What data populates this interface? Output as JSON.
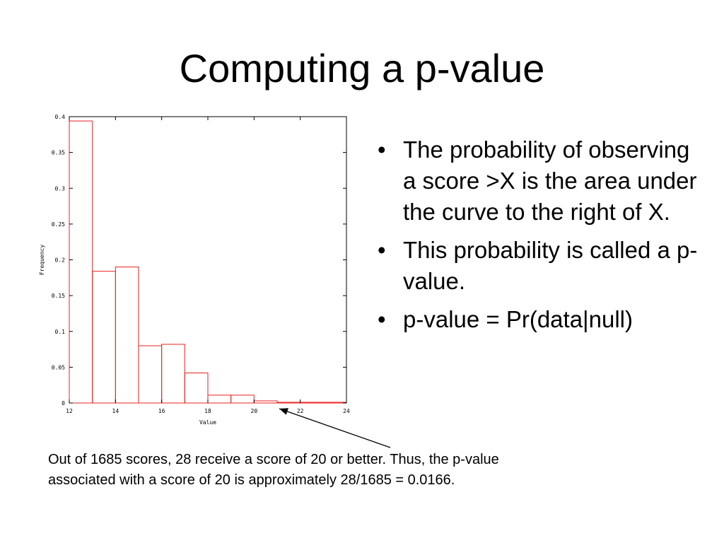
{
  "slide": {
    "title": "Computing a p-value",
    "bullets": [
      "The probability of observing a score >X is the area under the curve to the right of X.",
      "This probability is called a p-value.",
      "p-value = Pr(data|null)"
    ],
    "caption_lines": [
      "Out of 1685 scores, 28 receive a score of 20 or better. Thus, the p-value",
      "associated with a score of 20 is approximately 28/1685 = 0.0166."
    ]
  },
  "chart_data": {
    "type": "bar",
    "title": "",
    "xlabel": "Value",
    "ylabel": "Frequency",
    "xlim": [
      12,
      24
    ],
    "ylim": [
      0,
      0.4
    ],
    "x_ticks": [
      "12",
      "14",
      "16",
      "18",
      "20",
      "22",
      "24"
    ],
    "y_ticks": [
      "0",
      "0.05",
      "0.1",
      "0.15",
      "0.2",
      "0.25",
      "0.3",
      "0.35",
      "0.4"
    ],
    "bins": [
      {
        "x0": 12,
        "x1": 13,
        "value": 0.394
      },
      {
        "x0": 13,
        "x1": 14,
        "value": 0.184
      },
      {
        "x0": 14,
        "x1": 15,
        "value": 0.19
      },
      {
        "x0": 15,
        "x1": 16,
        "value": 0.08
      },
      {
        "x0": 16,
        "x1": 17,
        "value": 0.082
      },
      {
        "x0": 17,
        "x1": 18,
        "value": 0.042
      },
      {
        "x0": 18,
        "x1": 19,
        "value": 0.011
      },
      {
        "x0": 19,
        "x1": 20,
        "value": 0.011
      },
      {
        "x0": 20,
        "x1": 21,
        "value": 0.003
      },
      {
        "x0": 21,
        "x1": 22,
        "value": 0.001
      },
      {
        "x0": 22,
        "x1": 23,
        "value": 0.001
      },
      {
        "x0": 23,
        "x1": 24,
        "value": 0.001
      }
    ],
    "bar_color": "#e8231f",
    "grid": false,
    "annotation": {
      "points_to_x": 21,
      "points_to_y": 0.003
    }
  }
}
